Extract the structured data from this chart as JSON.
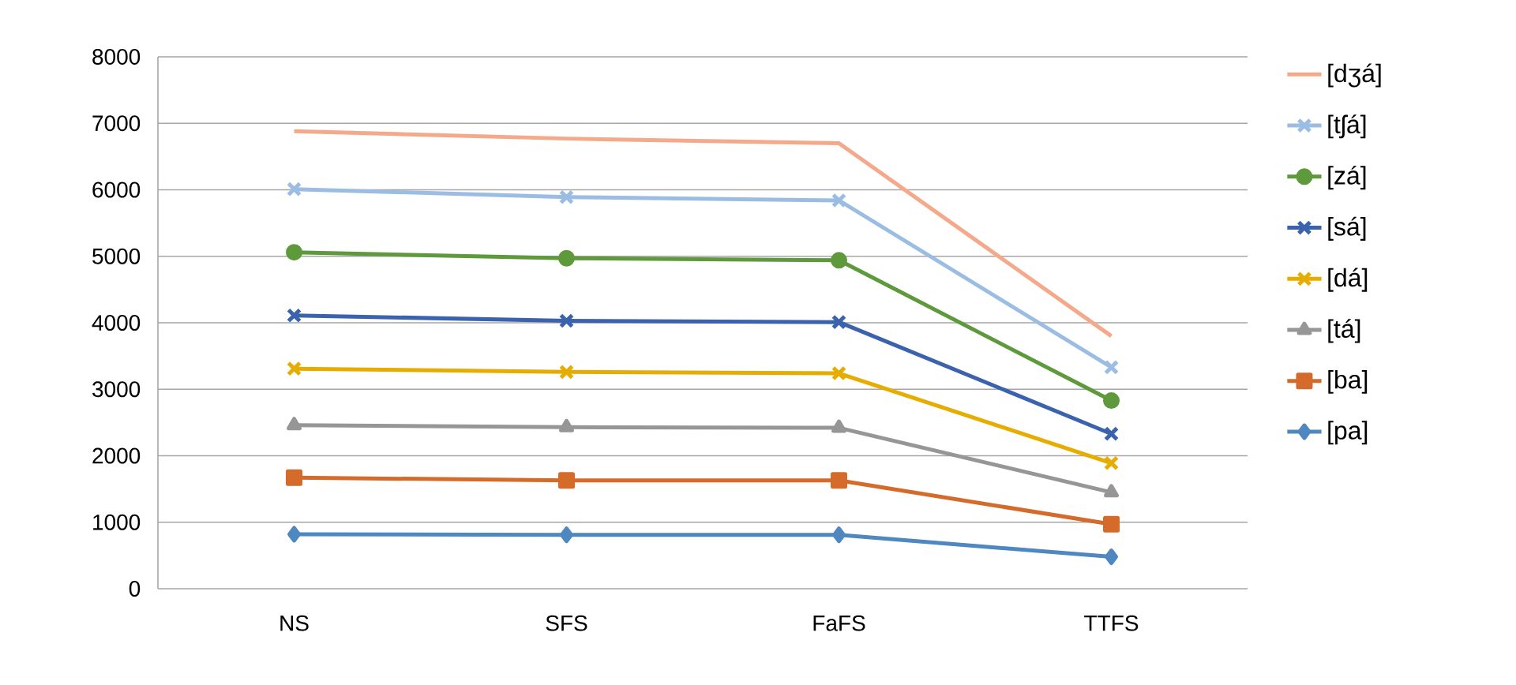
{
  "chart_data": {
    "type": "line",
    "categories": [
      "NS",
      "SFS",
      "FaFS",
      "TTFS"
    ],
    "series": [
      {
        "name": "[dʒá]",
        "color": "#f4a98a",
        "marker": "none",
        "values": [
          6880,
          6770,
          6700,
          3800
        ]
      },
      {
        "name": "[tʃá]",
        "color": "#9bbde3",
        "marker": "cross",
        "values": [
          6010,
          5890,
          5840,
          3330
        ]
      },
      {
        "name": "[zá]",
        "color": "#5e9a3c",
        "marker": "circle",
        "values": [
          5060,
          4970,
          4940,
          2830
        ]
      },
      {
        "name": "[sá]",
        "color": "#3a62ad",
        "marker": "cross",
        "values": [
          4110,
          4030,
          4010,
          2330
        ]
      },
      {
        "name": "[dá]",
        "color": "#e6ac00",
        "marker": "cross",
        "values": [
          3310,
          3260,
          3240,
          1890
        ]
      },
      {
        "name": "[tá]",
        "color": "#969696",
        "marker": "triangle",
        "values": [
          2460,
          2430,
          2420,
          1450
        ]
      },
      {
        "name": "[ba]",
        "color": "#d56b2a",
        "marker": "square",
        "values": [
          1670,
          1630,
          1630,
          970
        ]
      },
      {
        "name": "[pa]",
        "color": "#4f87c0",
        "marker": "diamond",
        "values": [
          820,
          810,
          810,
          480
        ]
      }
    ],
    "ylim": [
      0,
      8000
    ],
    "yticks": [
      0,
      1000,
      2000,
      3000,
      4000,
      5000,
      6000,
      7000,
      8000
    ],
    "grid": "y",
    "legend": "right",
    "line_style": "solid"
  }
}
